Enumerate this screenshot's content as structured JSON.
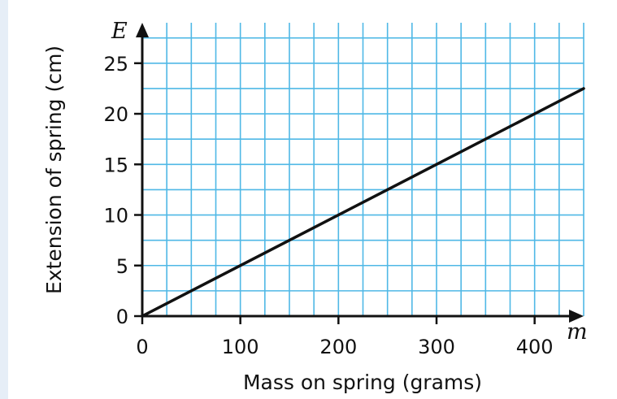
{
  "chart_data": {
    "type": "line",
    "title": "",
    "xlabel": "Mass on spring (grams)",
    "ylabel": "Extension of spring (cm)",
    "x_axis_symbol": "m",
    "y_axis_symbol": "E",
    "xlim": [
      0,
      450
    ],
    "ylim": [
      0,
      29
    ],
    "x_ticks": [
      0,
      100,
      200,
      300,
      400
    ],
    "y_ticks": [
      0,
      5,
      10,
      15,
      20,
      25
    ],
    "x_tick_labels": [
      "0",
      "100",
      "200",
      "300",
      "400"
    ],
    "y_tick_labels": [
      "0",
      "5",
      "10",
      "15",
      "20",
      "25"
    ],
    "grid": true,
    "grid_minor_x_step": 25,
    "grid_minor_y_step": 2.5,
    "grid_color": "#4fb8e6",
    "line_color": "#111111",
    "series": [
      {
        "x": [
          0,
          450
        ],
        "y": [
          0,
          22.5
        ]
      }
    ]
  }
}
